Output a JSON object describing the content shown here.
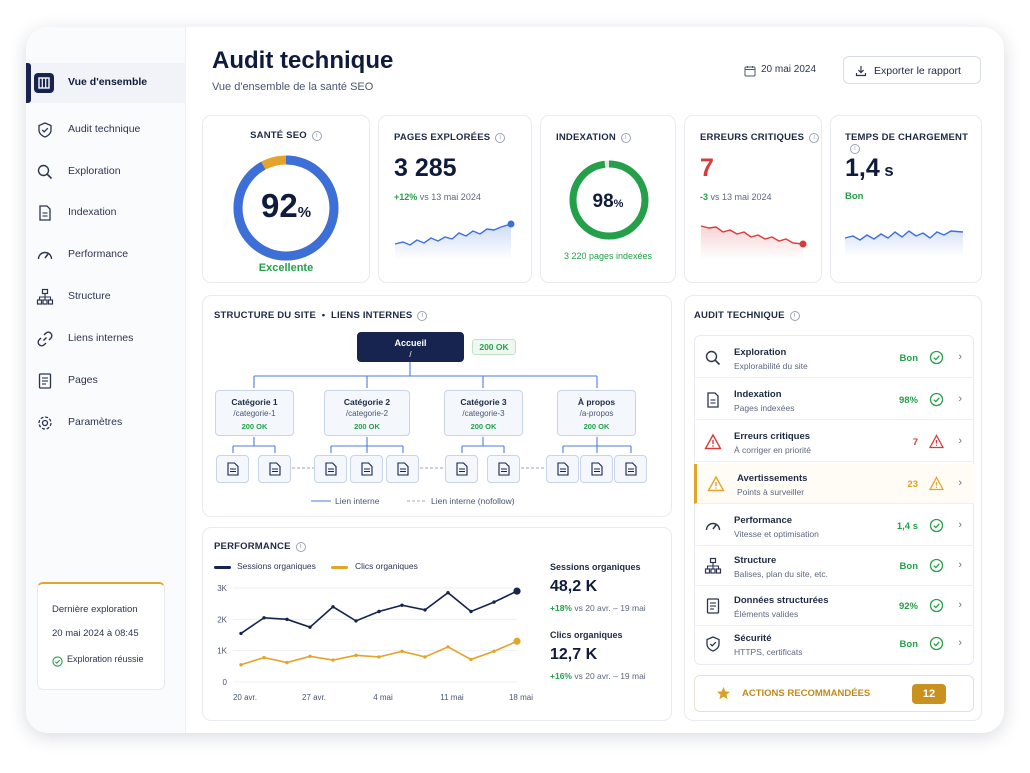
{
  "sidebar": {
    "items": [
      {
        "label": "Vue d'ensemble",
        "icon": "dashboard-icon",
        "active": true
      },
      {
        "label": "Audit technique",
        "icon": "shield-check-icon"
      },
      {
        "label": "Exploration",
        "icon": "search-icon"
      },
      {
        "label": "Indexation",
        "icon": "document-icon"
      },
      {
        "label": "Performance",
        "icon": "gauge-icon"
      },
      {
        "label": "Structure",
        "icon": "sitemap-icon"
      },
      {
        "label": "Liens internes",
        "icon": "link-icon"
      },
      {
        "label": "Pages",
        "icon": "pages-icon"
      },
      {
        "label": "Paramètres",
        "icon": "gear-icon"
      }
    ],
    "last_crawl": {
      "title": "Dernière exploration",
      "date": "20 mai 2024 à 08:45",
      "status": "Exploration réussie"
    }
  },
  "header": {
    "title": "Audit technique",
    "subtitle": "Vue d'ensemble de la santé SEO",
    "date": "20 mai 2024",
    "export_label": "Exporter le rapport"
  },
  "kpis": {
    "seo_health": {
      "label": "SANTÉ SEO",
      "value": "92",
      "unit": "%",
      "rating": "Excellente",
      "percent": 92
    },
    "pages_crawled": {
      "label": "PAGES EXPLORÉES",
      "value": "3 285",
      "delta": "+12%",
      "compare": "vs 13 mai 2024"
    },
    "indexation": {
      "label": "INDEXATION",
      "value": "98",
      "unit": "%",
      "percent": 98,
      "note": "3 220 pages indexées"
    },
    "critical_errors": {
      "label": "ERREURS CRITIQUES",
      "value": "7",
      "delta": "-3",
      "compare": "vs 13 mai 2024"
    },
    "load_time": {
      "label": "TEMPS DE CHARGEMENT",
      "value": "1,4",
      "unit": "s",
      "rating": "Bon"
    }
  },
  "structure": {
    "title": "STRUCTURE DU SITE",
    "title2": "LIENS INTERNES",
    "root": {
      "name": "Accueil",
      "path": "/",
      "status": "200 OK"
    },
    "categories": [
      {
        "name": "Catégorie 1",
        "path": "/categorie-1",
        "status": "200 OK"
      },
      {
        "name": "Catégorie 2",
        "path": "/categorie-2",
        "status": "200 OK"
      },
      {
        "name": "Catégorie 3",
        "path": "/categorie-3",
        "status": "200 OK"
      },
      {
        "name": "À propos",
        "path": "/a-propos",
        "status": "200 OK"
      }
    ],
    "legend_internal": "Lien interne",
    "legend_nofollow": "Lien interne (nofollow)"
  },
  "performance": {
    "title": "PERFORMANCE",
    "organic_sessions": {
      "label": "Sessions organiques",
      "value": "48,2 K",
      "delta": "+18%",
      "period": "vs 20 avr. – 19 mai"
    },
    "organic_clicks": {
      "label": "Clics organiques",
      "value": "12,7 K",
      "delta": "+16%",
      "period": "vs 20 avr. – 19 mai"
    }
  },
  "chart_data": {
    "type": "line",
    "categories": [
      "20 avr.",
      "27 avr.",
      "4 mai",
      "11 mai",
      "18 mai"
    ],
    "x": [
      0,
      1,
      2,
      3,
      4,
      5,
      6,
      7,
      8,
      9,
      10,
      11,
      12
    ],
    "series": [
      {
        "name": "Sessions organiques",
        "color": "#16244f",
        "values": [
          1.55,
          2.05,
          2.0,
          1.75,
          2.4,
          1.95,
          2.25,
          2.45,
          2.3,
          2.85,
          2.25,
          2.55,
          2.9
        ]
      },
      {
        "name": "Clics organiques",
        "color": "#e3a42b",
        "values": [
          0.55,
          0.78,
          0.62,
          0.82,
          0.7,
          0.85,
          0.8,
          0.98,
          0.8,
          1.12,
          0.72,
          0.98,
          1.3
        ]
      }
    ],
    "yticks": [
      "0",
      "1K",
      "2K",
      "3K"
    ],
    "ylim": [
      0,
      3
    ]
  },
  "audit": {
    "title": "AUDIT TECHNIQUE",
    "rows": [
      {
        "title": "Exploration",
        "sub": "Explorabilité du site",
        "value": "Bon",
        "status": "ok",
        "icon": "search-icon"
      },
      {
        "title": "Indexation",
        "sub": "Pages indexées",
        "value": "98%",
        "status": "ok",
        "icon": "document-icon"
      },
      {
        "title": "Erreurs critiques",
        "sub": "À corriger en priorité",
        "value": "7",
        "status": "error",
        "icon": "alert-icon"
      },
      {
        "title": "Avertissements",
        "sub": "Points à surveiller",
        "value": "23",
        "status": "warning",
        "icon": "warning-icon"
      },
      {
        "title": "Performance",
        "sub": "Vitesse et optimisation",
        "value": "1,4 s",
        "status": "ok",
        "icon": "gauge-icon"
      },
      {
        "title": "Structure",
        "sub": "Balises, plan du site, etc.",
        "value": "Bon",
        "status": "ok",
        "icon": "sitemap-icon"
      },
      {
        "title": "Données structurées",
        "sub": "Éléments valides",
        "value": "92%",
        "status": "ok",
        "icon": "data-icon"
      },
      {
        "title": "Sécurité",
        "sub": "HTTPS, certificats",
        "value": "Bon",
        "status": "ok",
        "icon": "shield-icon"
      }
    ],
    "actions_label": "ACTIONS RECOMMANDÉES",
    "actions_count": "12"
  },
  "colors": {
    "navy": "#16244f",
    "green": "#24a04a",
    "red": "#d93b3b",
    "orange": "#e3a42b",
    "blue": "#3d6fd8"
  }
}
